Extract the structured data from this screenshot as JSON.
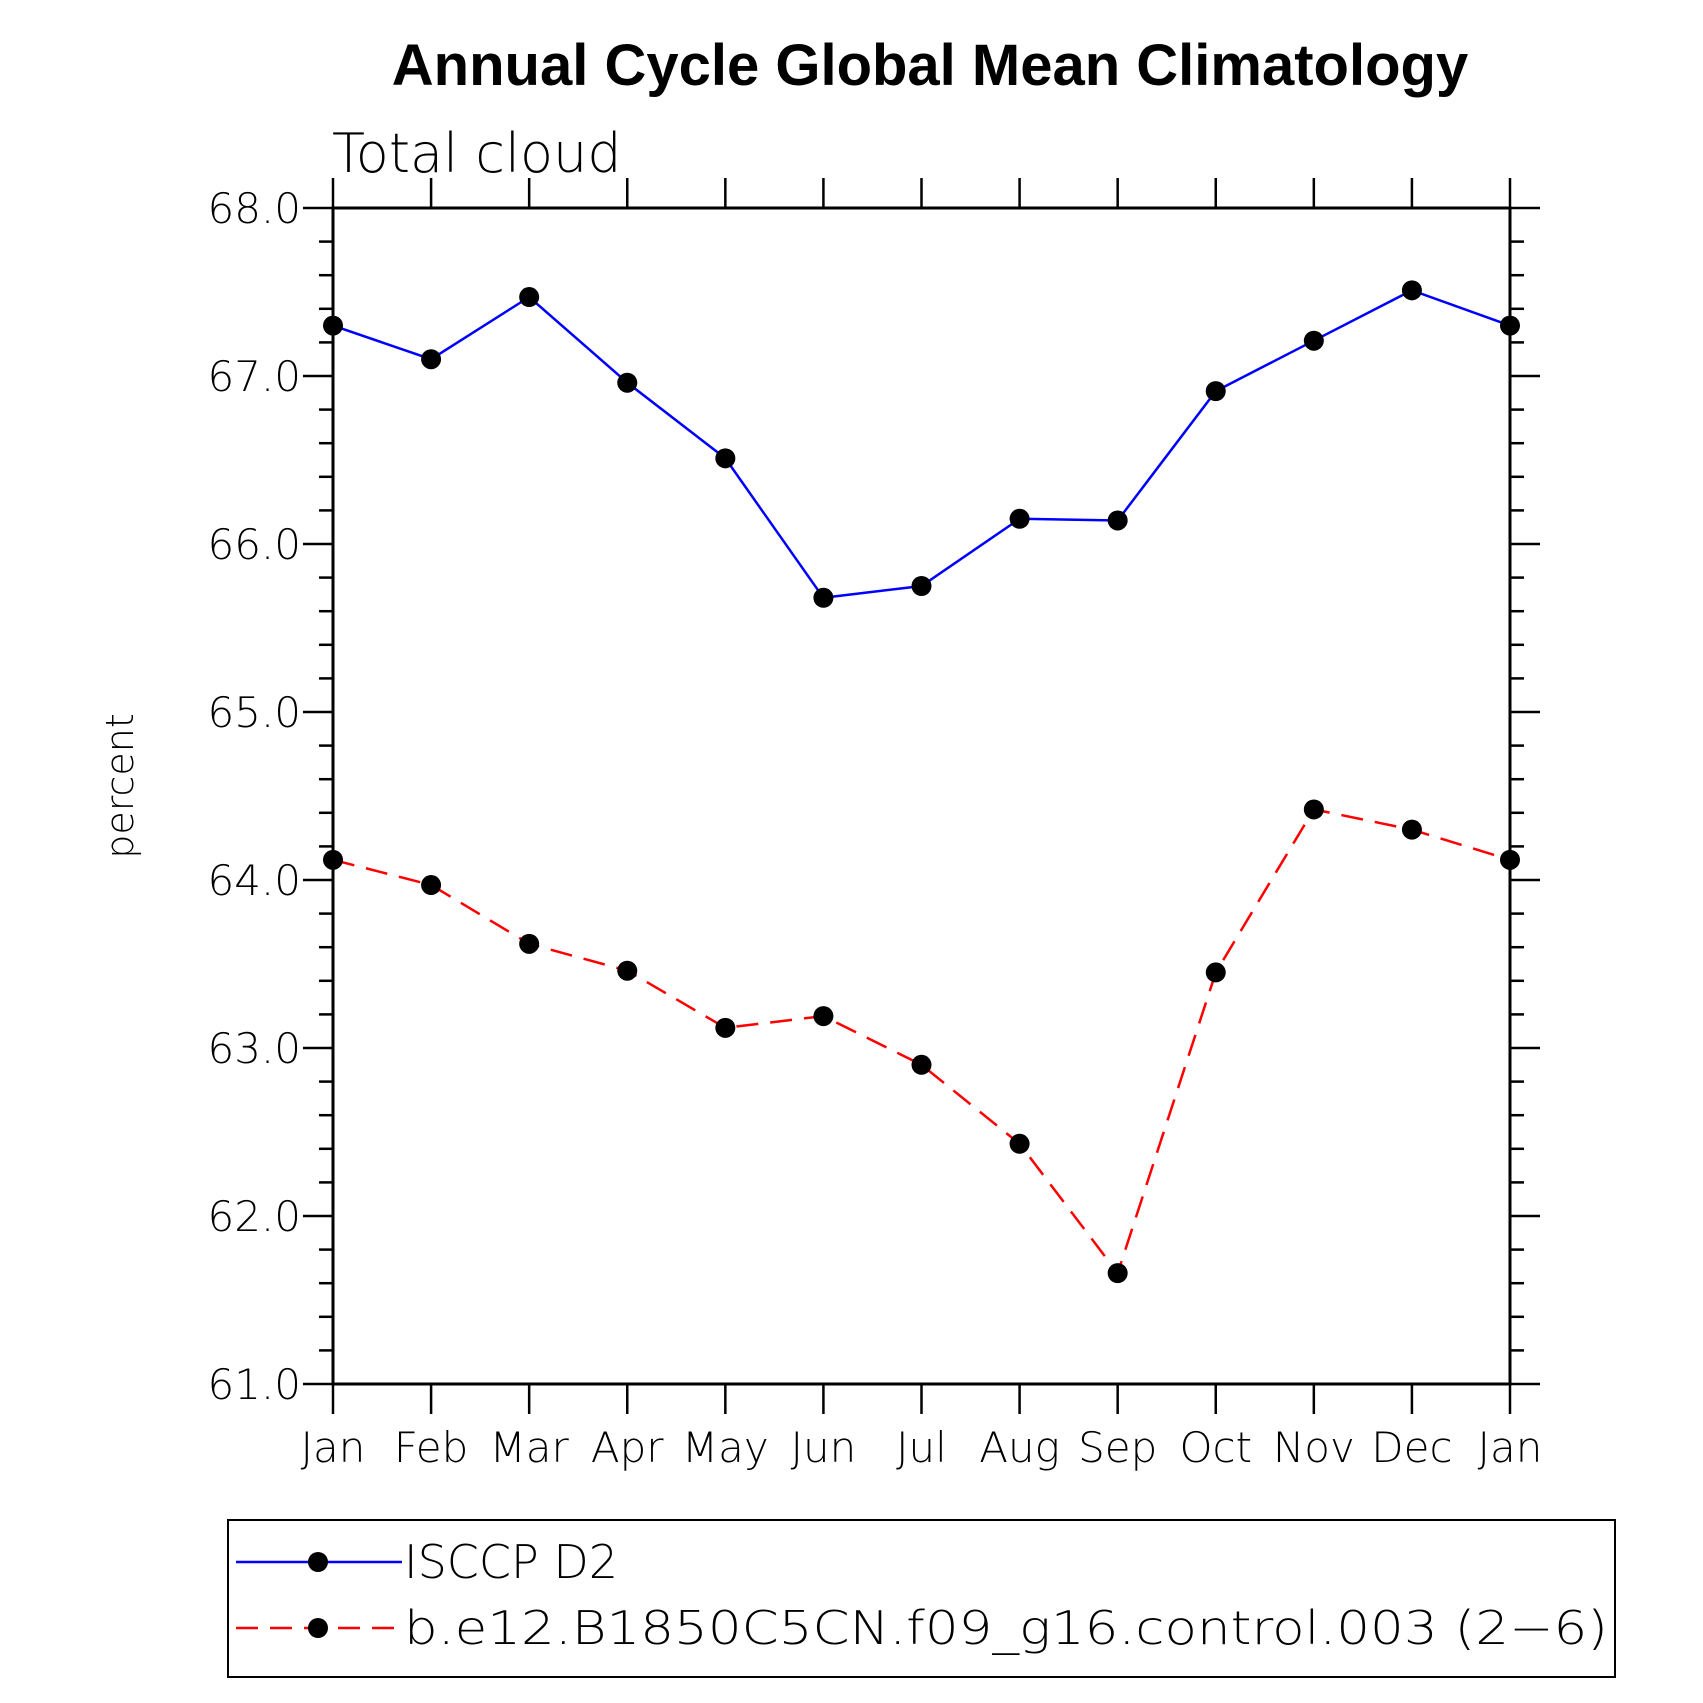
{
  "chart_data": {
    "type": "line",
    "title": "Annual Cycle Global Mean Climatology",
    "subtitle": "Total cloud",
    "xlabel": "",
    "ylabel": "percent",
    "ylim": [
      61.0,
      68.0
    ],
    "yticks": [
      "61.0",
      "62.0",
      "63.0",
      "64.0",
      "65.0",
      "66.0",
      "67.0",
      "68.0"
    ],
    "categories": [
      "Jan",
      "Feb",
      "Mar",
      "Apr",
      "May",
      "Jun",
      "Jul",
      "Aug",
      "Sep",
      "Oct",
      "Nov",
      "Dec",
      "Jan"
    ],
    "series": [
      {
        "name": "ISCCP D2",
        "color": "#0000ff",
        "dash": "solid",
        "values": [
          67.3,
          67.1,
          67.47,
          66.96,
          66.51,
          65.68,
          65.75,
          66.15,
          66.14,
          66.91,
          67.21,
          67.51,
          67.3
        ]
      },
      {
        "name": "b.e12.B1850C5CN.f09_g16.control.003 (2−6)",
        "color": "#ff0000",
        "dash": "dashed",
        "values": [
          64.12,
          63.97,
          63.62,
          63.46,
          63.12,
          63.19,
          62.9,
          62.43,
          61.66,
          63.45,
          64.42,
          64.3,
          64.12
        ]
      }
    ],
    "legend": "bottom"
  }
}
